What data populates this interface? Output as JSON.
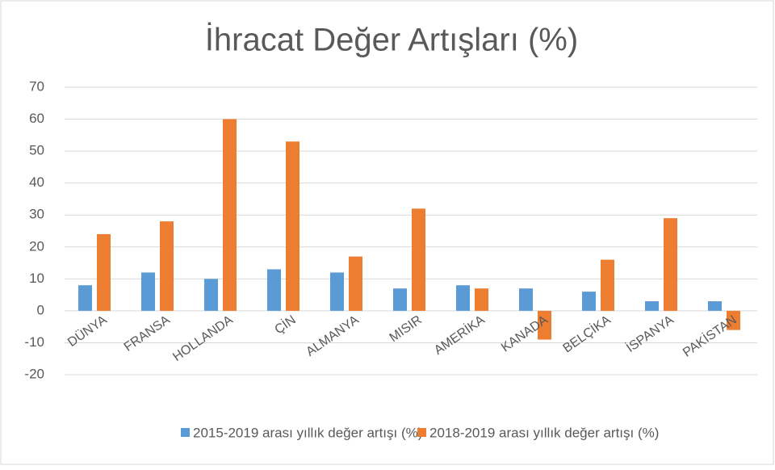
{
  "chart_data": {
    "type": "bar",
    "title": "İhracat Değer Artışları (%)",
    "categories": [
      "DÜNYA",
      "FRANSA",
      "HOLLANDA",
      "ÇİN",
      "ALMANYA",
      "MISIR",
      "AMERİKA",
      "KANADA",
      "BELÇİKA",
      "İSPANYA",
      "PAKİSTAN"
    ],
    "series": [
      {
        "name": "2015-2019 arası yıllık değer artışı (%)",
        "color": "#5b9bd5",
        "values": [
          8,
          12,
          10,
          13,
          12,
          7,
          8,
          7,
          6,
          3,
          3
        ]
      },
      {
        "name": "2018-2019 arası yıllık değer artışı (%)",
        "color": "#ed7d31",
        "values": [
          24,
          28,
          60,
          53,
          17,
          32,
          7,
          -9,
          16,
          29,
          -6
        ]
      }
    ],
    "ylim": [
      -20,
      70
    ],
    "yticks": [
      -20,
      -10,
      0,
      10,
      20,
      30,
      40,
      50,
      60,
      70
    ],
    "grid": true,
    "legend": "bottom"
  }
}
